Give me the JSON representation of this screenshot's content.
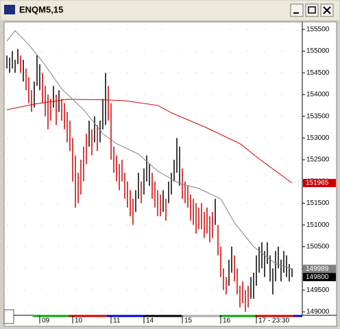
{
  "chart_data": {
    "type": "ohlc",
    "title": "ENQM5,15",
    "ylim": [
      155640,
      148920
    ],
    "yticks": [
      155500,
      155000,
      154500,
      154000,
      153500,
      153000,
      152500,
      152000,
      151500,
      151000,
      150500,
      150000,
      149500,
      149000
    ],
    "up_color": "#000000",
    "down_color": "#cc0000",
    "high": [
      154900,
      154850,
      155000,
      154800,
      155050,
      154900,
      154800,
      154600,
      154400,
      154100,
      154300,
      154900,
      154700,
      154500,
      154200,
      154000,
      153900,
      154200,
      154000,
      154100,
      153900,
      153800,
      153600,
      153400,
      153000,
      152600,
      152200,
      152500,
      152800,
      153100,
      153400,
      153200,
      153500,
      153300,
      153400,
      153900,
      154500,
      154200,
      153800,
      152800,
      152600,
      152400,
      152500,
      152200,
      152000,
      151800,
      151600,
      151800,
      152200,
      152000,
      152300,
      152600,
      152400,
      152200,
      152000,
      151800,
      151700,
      151800,
      151600,
      152000,
      152200,
      152500,
      153000,
      152800,
      152300,
      152000,
      151900,
      151700,
      151600,
      151500,
      151400,
      151500,
      151300,
      151400,
      151200,
      151300,
      151600,
      151000,
      150500,
      150000,
      149800,
      150200,
      150500,
      150300,
      150000,
      149600,
      149700,
      149500,
      149600,
      149800,
      149900,
      150300,
      150500,
      150600,
      150400,
      150600,
      150300,
      150000,
      150400,
      150500,
      150200,
      150400,
      150300,
      150100,
      150000
    ],
    "low": [
      154600,
      154500,
      154600,
      154500,
      154700,
      154500,
      154300,
      154100,
      153800,
      153600,
      153700,
      154200,
      154100,
      153800,
      153500,
      153200,
      153400,
      153700,
      153300,
      153600,
      153400,
      153200,
      152900,
      152700,
      152000,
      151400,
      151500,
      151700,
      152000,
      152400,
      152800,
      152600,
      152900,
      152700,
      152900,
      153200,
      153300,
      153400,
      152500,
      152200,
      152000,
      151800,
      152000,
      151600,
      151400,
      151200,
      151000,
      151300,
      151600,
      151500,
      151700,
      152000,
      151900,
      151600,
      151400,
      151200,
      151200,
      151300,
      151100,
      151500,
      151700,
      152000,
      152200,
      151900,
      151600,
      151500,
      151400,
      151100,
      151000,
      150800,
      150900,
      150900,
      150700,
      150800,
      150600,
      150700,
      151000,
      150300,
      149800,
      149500,
      149400,
      149600,
      149900,
      149700,
      149400,
      149100,
      149200,
      149000,
      149100,
      149300,
      149300,
      149600,
      149900,
      150000,
      149800,
      150100,
      149700,
      149400,
      149700,
      150000,
      149700,
      149900,
      149800,
      149700,
      149800
    ],
    "rising": [
      true,
      true,
      true,
      true,
      true,
      false,
      true,
      false,
      false,
      false,
      true,
      true,
      true,
      false,
      false,
      false,
      false,
      true,
      false,
      true,
      false,
      false,
      false,
      false,
      false,
      false,
      false,
      false,
      false,
      false,
      true,
      false,
      true,
      false,
      true,
      true,
      true,
      false,
      false,
      false,
      false,
      false,
      false,
      false,
      false,
      false,
      false,
      true,
      true,
      false,
      true,
      true,
      true,
      false,
      false,
      false,
      false,
      true,
      false,
      true,
      true,
      true,
      true,
      true,
      false,
      false,
      false,
      false,
      false,
      false,
      false,
      false,
      false,
      false,
      false,
      false,
      true,
      false,
      false,
      false,
      false,
      true,
      true,
      false,
      false,
      false,
      false,
      false,
      false,
      true,
      true,
      true,
      true,
      true,
      true,
      true,
      true,
      true,
      true,
      true,
      true,
      true,
      true,
      true,
      true
    ],
    "averages": [
      {
        "color": "#cc0000",
        "x": [
          0,
          10,
          22,
          35,
          43,
          55,
          60,
          72,
          85,
          92,
          104
        ],
        "values": [
          153650,
          153780,
          153890,
          153880,
          153860,
          153750,
          153580,
          153260,
          152870,
          152520,
          151965
        ]
      },
      {
        "color": "#808080",
        "x": [
          0,
          3,
          8,
          13,
          20,
          28,
          35,
          40,
          48,
          55,
          63,
          70,
          78,
          83,
          90,
          98,
          104
        ],
        "values": [
          155230,
          155470,
          155150,
          154760,
          154130,
          153650,
          153100,
          152870,
          152630,
          152240,
          151950,
          151840,
          151600,
          151050,
          150500,
          150110,
          149989
        ]
      }
    ],
    "markers": [
      {
        "value": 151965,
        "color": "#cc0000"
      },
      {
        "value": 149989,
        "color": "#808080"
      },
      {
        "value": 149800,
        "color": "#000000"
      }
    ],
    "x_labels": [
      {
        "value": 12,
        "label": "09"
      },
      {
        "value": 24,
        "label": "10"
      },
      {
        "value": 38,
        "label": "11"
      },
      {
        "value": 50,
        "label": "14"
      },
      {
        "value": 64,
        "label": "15"
      },
      {
        "value": 78,
        "label": "16"
      },
      {
        "value": 91,
        "label": "17 - 23:30"
      }
    ]
  }
}
